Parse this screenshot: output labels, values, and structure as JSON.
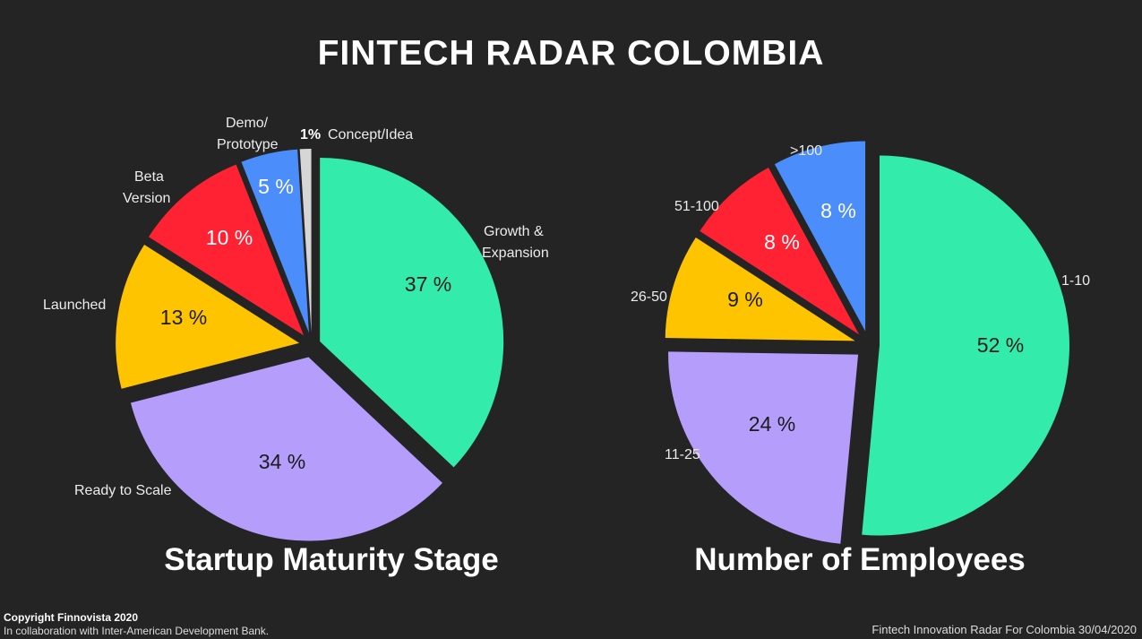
{
  "page": {
    "title": "FINTECH RADAR COLOMBIA",
    "copyright": "Copyright Finnovista 2020",
    "collaboration": "In collaboration with Inter-American Development Bank.",
    "source": "Fintech Innovation Radar For Colombia 30/04/2020"
  },
  "chart_data": [
    {
      "type": "pie",
      "title": "Startup Maturity Stage",
      "slices": [
        {
          "label": "Growth & Expansion",
          "value": 37,
          "pct_label": "37 %",
          "color": "#33ebaa"
        },
        {
          "label": "Ready to Scale",
          "value": 34,
          "pct_label": "34 %",
          "color": "#b49dfb"
        },
        {
          "label": "Launched",
          "value": 13,
          "pct_label": "13 %",
          "color": "#ffc400"
        },
        {
          "label": "Beta Version",
          "value": 10,
          "pct_label": "10 %",
          "color": "#ff2233"
        },
        {
          "label": "Demo/ Prototype",
          "value": 5,
          "pct_label": "5 %",
          "color": "#4b8dfb"
        },
        {
          "label": "Concept/Idea",
          "value": 1,
          "pct_label": "1%",
          "color": "#d6d6d6"
        }
      ]
    },
    {
      "type": "pie",
      "title": "Number of Employees",
      "slices": [
        {
          "label": "1-10",
          "value": 52,
          "pct_label": "52 %",
          "color": "#33ebaa"
        },
        {
          "label": "11-25",
          "value": 24,
          "pct_label": "24 %",
          "color": "#b49dfb"
        },
        {
          "label": "26-50",
          "value": 9,
          "pct_label": "9 %",
          "color": "#ffc400"
        },
        {
          "label": "51-100",
          "value": 8,
          "pct_label": "8 %",
          "color": "#ff2233"
        },
        {
          "label": ">100",
          "value": 8,
          "pct_label": "8 %",
          "color": "#4b8dfb"
        }
      ]
    }
  ]
}
